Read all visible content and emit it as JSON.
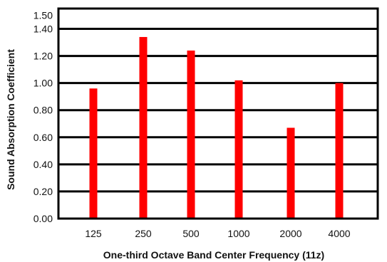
{
  "chart_data": {
    "type": "bar",
    "categories": [
      "125",
      "250",
      "500",
      "1000",
      "2000",
      "4000"
    ],
    "series": [
      {
        "values": [
          0.96,
          1.34,
          1.24,
          1.02,
          0.67,
          1.0
        ],
        "color": "#ff0000"
      }
    ],
    "xlabel": "One-third Octave Band Center Frequency (11z)",
    "ylabel": "Sound Absorption Coefficient",
    "ylim": [
      0,
      1.55
    ],
    "yticks": [
      "0.00",
      "0.20",
      "0.40",
      "0.60",
      "0.80",
      "1.00",
      "1.20",
      "1.40",
      "1.50"
    ],
    "ytick_values": [
      0,
      0.2,
      0.4,
      0.6,
      0.8,
      1.0,
      1.2,
      1.4,
      1.5
    ],
    "grid": true,
    "legend": "none",
    "colors": {
      "bar": "#ff0000",
      "axis": "#000000",
      "grid": "#000000",
      "background": "#ffffff"
    }
  }
}
